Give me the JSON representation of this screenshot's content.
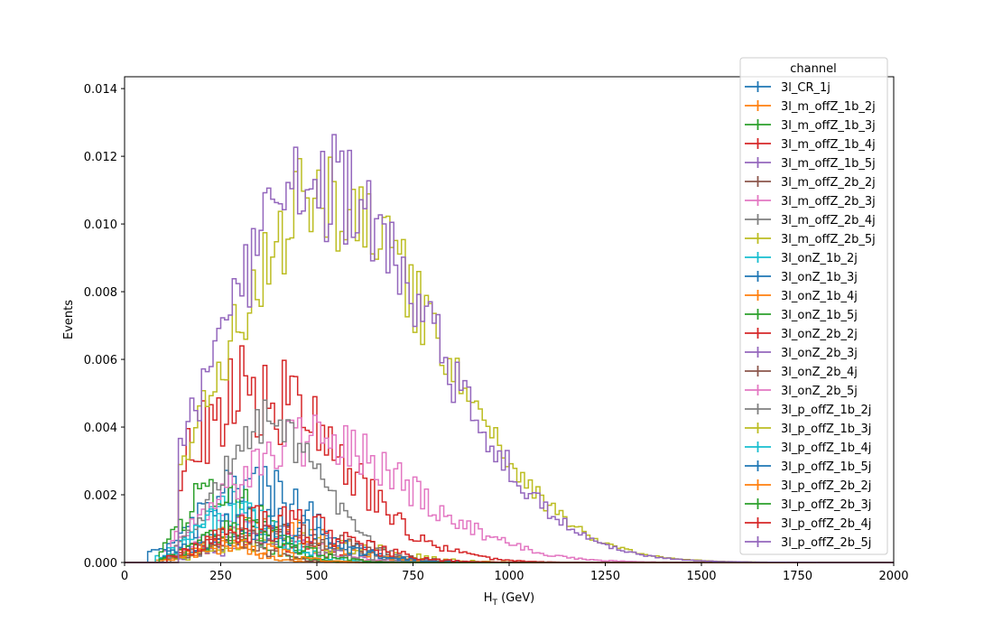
{
  "chart_data": {
    "type": "step-histogram",
    "xlabel_main": "H",
    "xlabel_sub": "T",
    "xlabel_rest": " (GeV)",
    "ylabel": "Events",
    "xlim": [
      0,
      2000
    ],
    "ylim": [
      0,
      0.01435
    ],
    "xticks": [
      0,
      250,
      500,
      750,
      1000,
      1250,
      1500,
      1750,
      2000
    ],
    "xtick_labels": [
      "0",
      "250",
      "500",
      "750",
      "1000",
      "1250",
      "1500",
      "1750",
      "2000"
    ],
    "yticks": [
      0,
      0.002,
      0.004,
      0.006,
      0.008,
      0.01,
      0.012,
      0.014
    ],
    "ytick_labels": [
      "0.000",
      "0.002",
      "0.004",
      "0.006",
      "0.008",
      "0.010",
      "0.012",
      "0.014"
    ],
    "grid": false,
    "legend": {
      "title": "channel",
      "placement": "top-right",
      "marker": "errorbar-cross"
    },
    "bin_width": 10,
    "series": [
      {
        "name": "3l_CR_1j",
        "color": "#1f77b4",
        "drawn": false,
        "peak_x": 300,
        "peak_y": 0.002,
        "sigma": 110,
        "noise": 0.4,
        "start": 20
      },
      {
        "name": "3l_m_offZ_1b_2j",
        "color": "#ff7f0e",
        "drawn": true,
        "peak_x": 230,
        "peak_y": 0.0005,
        "sigma": 70,
        "noise": 0.5,
        "start": 80
      },
      {
        "name": "3l_m_offZ_1b_3j",
        "color": "#2ca02c",
        "drawn": true,
        "peak_x": 260,
        "peak_y": 0.0007,
        "sigma": 80,
        "noise": 0.5,
        "start": 90
      },
      {
        "name": "3l_m_offZ_1b_4j",
        "color": "#d62728",
        "drawn": true,
        "peak_x": 320,
        "peak_y": 0.0008,
        "sigma": 110,
        "noise": 0.5,
        "start": 100
      },
      {
        "name": "3l_m_offZ_1b_5j",
        "color": "#9467bd",
        "drawn": true,
        "peak_x": 380,
        "peak_y": 0.0007,
        "sigma": 140,
        "noise": 0.6,
        "start": 120
      },
      {
        "name": "3l_m_offZ_2b_2j",
        "color": "#8c564b",
        "drawn": true,
        "peak_x": 250,
        "peak_y": 0.0006,
        "sigma": 80,
        "noise": 0.5,
        "start": 90
      },
      {
        "name": "3l_m_offZ_2b_3j",
        "color": "#e377c2",
        "drawn": true,
        "peak_x": 300,
        "peak_y": 0.001,
        "sigma": 120,
        "noise": 0.5,
        "start": 90
      },
      {
        "name": "3l_m_offZ_2b_4j",
        "color": "#7f7f7f",
        "drawn": true,
        "peak_x": 350,
        "peak_y": 0.0008,
        "sigma": 120,
        "noise": 0.5,
        "start": 100
      },
      {
        "name": "3l_m_offZ_2b_5j",
        "color": "#bcbd22",
        "drawn": true,
        "peak_x": 420,
        "peak_y": 0.0007,
        "sigma": 150,
        "noise": 0.6,
        "start": 120
      },
      {
        "name": "3l_onZ_1b_2j",
        "color": "#17becf",
        "drawn": true,
        "peak_x": 260,
        "peak_y": 0.0016,
        "sigma": 80,
        "noise": 0.4,
        "start": 80
      },
      {
        "name": "3l_onZ_1b_3j",
        "color": "#1f77b4",
        "drawn": true,
        "peak_x": 320,
        "peak_y": 0.0022,
        "sigma": 120,
        "noise": 0.4,
        "start": 60
      },
      {
        "name": "3l_onZ_1b_4j",
        "color": "#ff7f0e",
        "drawn": true,
        "peak_x": 360,
        "peak_y": 0.001,
        "sigma": 130,
        "noise": 0.5,
        "start": 100
      },
      {
        "name": "3l_onZ_1b_5j",
        "color": "#2ca02c",
        "drawn": true,
        "peak_x": 240,
        "peak_y": 0.0023,
        "sigma": 80,
        "noise": 0.35,
        "start": 90
      },
      {
        "name": "3l_onZ_2b_2j",
        "color": "#d62728",
        "drawn": true,
        "peak_x": 330,
        "peak_y": 0.005,
        "sigma": 170,
        "noise": 0.3,
        "start": 140
      },
      {
        "name": "3l_onZ_2b_3j",
        "color": "#9467bd",
        "drawn": false,
        "peak_x": 500,
        "peak_y": 0.011,
        "sigma": 220,
        "noise": 0.15,
        "start": 130
      },
      {
        "name": "3l_onZ_2b_4j",
        "color": "#8c564b",
        "drawn": true,
        "peak_x": 400,
        "peak_y": 0.0008,
        "sigma": 140,
        "noise": 0.5,
        "start": 110
      },
      {
        "name": "3l_onZ_2b_5j",
        "color": "#e377c2",
        "drawn": true,
        "peak_x": 480,
        "peak_y": 0.0036,
        "sigma": 200,
        "noise": 0.25,
        "start": 120
      },
      {
        "name": "3l_p_offZ_1b_2j",
        "color": "#7f7f7f",
        "drawn": true,
        "peak_x": 360,
        "peak_y": 0.004,
        "sigma": 110,
        "noise": 0.2,
        "start": 120
      },
      {
        "name": "3l_p_offZ_1b_3j",
        "color": "#bcbd22",
        "drawn": true,
        "peak_x": 510,
        "peak_y": 0.0108,
        "sigma": 230,
        "noise": 0.14,
        "start": 140
      },
      {
        "name": "3l_p_offZ_1b_4j",
        "color": "#17becf",
        "drawn": true,
        "peak_x": 280,
        "peak_y": 0.0014,
        "sigma": 90,
        "noise": 0.45,
        "start": 90
      },
      {
        "name": "3l_p_offZ_1b_5j",
        "color": "#1f77b4",
        "drawn": true,
        "peak_x": 350,
        "peak_y": 0.0012,
        "sigma": 130,
        "noise": 0.5,
        "start": 100
      },
      {
        "name": "3l_p_offZ_2b_2j",
        "color": "#ff7f0e",
        "drawn": true,
        "peak_x": 280,
        "peak_y": 0.0005,
        "sigma": 90,
        "noise": 0.5,
        "start": 90
      },
      {
        "name": "3l_p_offZ_2b_3j",
        "color": "#2ca02c",
        "drawn": true,
        "peak_x": 300,
        "peak_y": 0.0009,
        "sigma": 100,
        "noise": 0.5,
        "start": 90
      },
      {
        "name": "3l_p_offZ_2b_4j",
        "color": "#d62728",
        "drawn": true,
        "peak_x": 380,
        "peak_y": 0.0012,
        "sigma": 140,
        "noise": 0.5,
        "start": 110
      },
      {
        "name": "3l_p_offZ_2b_5j",
        "color": "#9467bd",
        "drawn": true,
        "peak_x": 490,
        "peak_y": 0.0112,
        "sigma": 230,
        "noise": 0.15,
        "start": 140
      }
    ]
  }
}
